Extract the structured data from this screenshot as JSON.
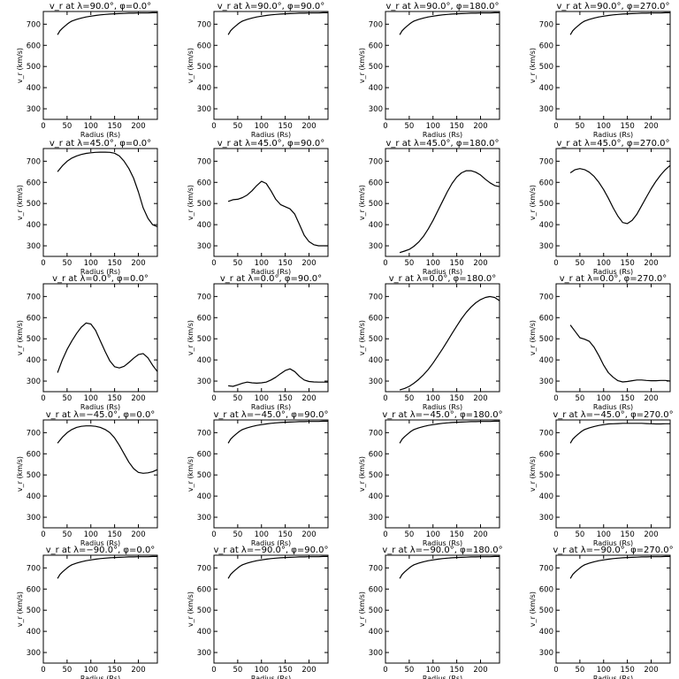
{
  "chart_data": [
    {
      "type": "line",
      "title": "v_r at λ=90.0°, φ=0.0°",
      "xlabel": "Radius (Rs)",
      "ylabel": "v_r (km/s)",
      "xlim": [
        0,
        240
      ],
      "ylim": [
        250,
        760
      ],
      "x": [
        30,
        35,
        40,
        45,
        50,
        55,
        60,
        70,
        80,
        90,
        100,
        110,
        120,
        130,
        140,
        150,
        160,
        170,
        180,
        190,
        200,
        210,
        220,
        230,
        240
      ],
      "y": [
        650,
        669,
        680,
        690,
        700,
        708,
        715,
        723,
        729,
        734,
        738,
        741,
        744,
        746,
        748,
        749,
        750,
        751,
        752,
        752,
        753,
        753,
        753,
        754,
        754
      ]
    },
    {
      "type": "line",
      "title": "v_r at λ=90.0°, φ=90.0°",
      "xlabel": "Radius (Rs)",
      "ylabel": "v_r (km/s)",
      "xlim": [
        0,
        240
      ],
      "ylim": [
        250,
        760
      ],
      "x": [
        30,
        35,
        40,
        45,
        50,
        55,
        60,
        70,
        80,
        90,
        100,
        110,
        120,
        130,
        140,
        150,
        160,
        170,
        180,
        190,
        200,
        210,
        220,
        230,
        240
      ],
      "y": [
        650,
        669,
        680,
        690,
        700,
        708,
        715,
        723,
        729,
        734,
        738,
        741,
        744,
        746,
        748,
        749,
        750,
        751,
        752,
        752,
        753,
        753,
        753,
        754,
        754
      ]
    },
    {
      "type": "line",
      "title": "v_r at λ=90.0°, φ=180.0°",
      "xlabel": "Radius (Rs)",
      "ylabel": "v_r (km/s)",
      "xlim": [
        0,
        240
      ],
      "ylim": [
        250,
        760
      ],
      "x": [
        30,
        35,
        40,
        45,
        50,
        55,
        60,
        70,
        80,
        90,
        100,
        110,
        120,
        130,
        140,
        150,
        160,
        170,
        180,
        190,
        200,
        210,
        220,
        230,
        240
      ],
      "y": [
        650,
        669,
        680,
        690,
        700,
        708,
        715,
        723,
        729,
        734,
        738,
        741,
        744,
        746,
        748,
        749,
        750,
        751,
        752,
        752,
        753,
        753,
        753,
        754,
        754
      ]
    },
    {
      "type": "line",
      "title": "v_r at λ=90.0°, φ=270.0°",
      "xlabel": "Radius (Rs)",
      "ylabel": "v_r (km/s)",
      "xlim": [
        0,
        240
      ],
      "ylim": [
        250,
        760
      ],
      "x": [
        30,
        35,
        40,
        45,
        50,
        55,
        60,
        70,
        80,
        90,
        100,
        110,
        120,
        130,
        140,
        150,
        160,
        170,
        180,
        190,
        200,
        210,
        220,
        230,
        240
      ],
      "y": [
        650,
        669,
        680,
        690,
        700,
        708,
        715,
        723,
        729,
        734,
        738,
        741,
        744,
        746,
        748,
        749,
        750,
        751,
        752,
        752,
        753,
        753,
        753,
        754,
        754
      ]
    },
    {
      "type": "line",
      "title": "v_r at λ=45.0°, φ=0.0°",
      "xlabel": "Radius (Rs)",
      "ylabel": "v_r (km/s)",
      "xlim": [
        0,
        240
      ],
      "ylim": [
        250,
        760
      ],
      "x": [
        30,
        40,
        50,
        60,
        70,
        80,
        90,
        100,
        110,
        120,
        130,
        140,
        150,
        160,
        170,
        180,
        190,
        200,
        210,
        220,
        230,
        240
      ],
      "y": [
        650,
        678,
        700,
        715,
        725,
        732,
        737,
        740,
        742,
        743,
        743,
        742,
        738,
        725,
        700,
        665,
        620,
        555,
        480,
        430,
        400,
        390
      ]
    },
    {
      "type": "line",
      "title": "v_r at λ=45.0°, φ=90.0°",
      "xlabel": "Radius (Rs)",
      "ylabel": "v_r (km/s)",
      "xlim": [
        0,
        240
      ],
      "ylim": [
        250,
        760
      ],
      "x": [
        30,
        40,
        50,
        60,
        70,
        80,
        90,
        100,
        110,
        120,
        130,
        140,
        150,
        160,
        170,
        180,
        190,
        200,
        210,
        220,
        230,
        240
      ],
      "y": [
        510,
        518,
        520,
        528,
        540,
        560,
        585,
        605,
        595,
        560,
        520,
        495,
        485,
        475,
        450,
        400,
        350,
        320,
        305,
        300,
        300,
        300
      ]
    },
    {
      "type": "line",
      "title": "v_r at λ=45.0°, φ=180.0°",
      "xlabel": "Radius (Rs)",
      "ylabel": "v_r (km/s)",
      "xlim": [
        0,
        240
      ],
      "ylim": [
        250,
        760
      ],
      "x": [
        30,
        40,
        50,
        60,
        70,
        80,
        90,
        100,
        110,
        120,
        130,
        140,
        150,
        160,
        170,
        180,
        190,
        200,
        210,
        220,
        230,
        240
      ],
      "y": [
        268,
        275,
        283,
        298,
        318,
        345,
        380,
        420,
        465,
        510,
        555,
        595,
        625,
        645,
        655,
        655,
        648,
        635,
        615,
        598,
        585,
        580
      ]
    },
    {
      "type": "line",
      "title": "v_r at λ=45.0°, φ=270.0°",
      "xlabel": "Radius (Rs)",
      "ylabel": "v_r (km/s)",
      "xlim": [
        0,
        240
      ],
      "ylim": [
        250,
        760
      ],
      "x": [
        30,
        40,
        50,
        60,
        70,
        80,
        90,
        100,
        110,
        120,
        130,
        140,
        150,
        160,
        170,
        180,
        190,
        200,
        210,
        220,
        230,
        240
      ],
      "y": [
        645,
        660,
        665,
        660,
        648,
        628,
        600,
        565,
        525,
        480,
        440,
        410,
        405,
        420,
        450,
        490,
        530,
        570,
        605,
        635,
        660,
        680
      ]
    },
    {
      "type": "line",
      "title": "v_r at λ=0.0°, φ=0.0°",
      "xlabel": "Radius (Rs)",
      "ylabel": "v_r (km/s)",
      "xlim": [
        0,
        240
      ],
      "ylim": [
        250,
        760
      ],
      "x": [
        30,
        40,
        50,
        60,
        70,
        80,
        90,
        100,
        110,
        120,
        130,
        140,
        150,
        160,
        170,
        180,
        190,
        200,
        210,
        220,
        230,
        240
      ],
      "y": [
        340,
        400,
        450,
        490,
        525,
        555,
        575,
        570,
        540,
        490,
        440,
        395,
        368,
        362,
        370,
        388,
        408,
        425,
        430,
        410,
        375,
        345
      ]
    },
    {
      "type": "line",
      "title": "v_r at λ=0.0°, φ=90.0°",
      "xlabel": "Radius (Rs)",
      "ylabel": "v_r (km/s)",
      "xlim": [
        0,
        240
      ],
      "ylim": [
        250,
        760
      ],
      "x": [
        30,
        40,
        50,
        60,
        70,
        80,
        90,
        100,
        110,
        120,
        130,
        140,
        150,
        160,
        170,
        180,
        190,
        200,
        210,
        220,
        230,
        240
      ],
      "y": [
        278,
        275,
        282,
        290,
        295,
        292,
        290,
        292,
        295,
        305,
        318,
        335,
        350,
        358,
        345,
        322,
        305,
        298,
        296,
        295,
        295,
        295
      ]
    },
    {
      "type": "line",
      "title": "v_r at λ=0.0°, φ=180.0°",
      "xlabel": "Radius (Rs)",
      "ylabel": "v_r (km/s)",
      "xlim": [
        0,
        240
      ],
      "ylim": [
        250,
        760
      ],
      "x": [
        30,
        40,
        50,
        60,
        70,
        80,
        90,
        100,
        110,
        120,
        130,
        140,
        150,
        160,
        170,
        180,
        190,
        200,
        210,
        220,
        230,
        240
      ],
      "y": [
        258,
        265,
        275,
        290,
        308,
        330,
        355,
        385,
        418,
        452,
        488,
        525,
        560,
        595,
        625,
        650,
        670,
        685,
        695,
        700,
        695,
        680
      ]
    },
    {
      "type": "line",
      "title": "v_r at λ=0.0°, φ=270.0°",
      "xlabel": "Radius (Rs)",
      "ylabel": "v_r (km/s)",
      "xlim": [
        0,
        240
      ],
      "ylim": [
        250,
        760
      ],
      "x": [
        30,
        40,
        50,
        60,
        70,
        80,
        90,
        100,
        110,
        120,
        130,
        140,
        150,
        160,
        170,
        180,
        190,
        200,
        210,
        220,
        230,
        240
      ],
      "y": [
        565,
        535,
        505,
        498,
        488,
        460,
        420,
        375,
        340,
        318,
        302,
        296,
        298,
        302,
        305,
        305,
        303,
        302,
        302,
        303,
        303,
        300
      ]
    },
    {
      "type": "line",
      "title": "v_r at λ=−45.0°, φ=0.0°",
      "xlabel": "Radius (Rs)",
      "ylabel": "v_r (km/s)",
      "xlim": [
        0,
        240
      ],
      "ylim": [
        250,
        760
      ],
      "x": [
        30,
        40,
        50,
        60,
        70,
        80,
        90,
        100,
        110,
        120,
        130,
        140,
        150,
        160,
        170,
        180,
        190,
        200,
        210,
        220,
        230,
        240
      ],
      "y": [
        650,
        678,
        700,
        715,
        725,
        730,
        732,
        732,
        730,
        725,
        715,
        700,
        675,
        640,
        600,
        560,
        530,
        512,
        508,
        510,
        515,
        525
      ]
    },
    {
      "type": "line",
      "title": "v_r at λ=−45.0°, φ=90.0°",
      "xlabel": "Radius (Rs)",
      "ylabel": "v_r (km/s)",
      "xlim": [
        0,
        240
      ],
      "ylim": [
        250,
        760
      ],
      "x": [
        30,
        35,
        40,
        45,
        50,
        55,
        60,
        70,
        80,
        90,
        100,
        110,
        120,
        130,
        140,
        150,
        160,
        170,
        180,
        190,
        200,
        210,
        220,
        230,
        240
      ],
      "y": [
        650,
        669,
        680,
        690,
        700,
        708,
        715,
        723,
        729,
        734,
        738,
        741,
        744,
        746,
        748,
        749,
        750,
        751,
        752,
        752,
        753,
        753,
        753,
        754,
        754
      ]
    },
    {
      "type": "line",
      "title": "v_r at λ=−45.0°, φ=180.0°",
      "xlabel": "Radius (Rs)",
      "ylabel": "v_r (km/s)",
      "xlim": [
        0,
        240
      ],
      "ylim": [
        250,
        760
      ],
      "x": [
        30,
        35,
        40,
        45,
        50,
        55,
        60,
        70,
        80,
        90,
        100,
        110,
        120,
        130,
        140,
        150,
        160,
        170,
        180,
        190,
        200,
        210,
        220,
        230,
        240
      ],
      "y": [
        650,
        669,
        680,
        690,
        700,
        708,
        715,
        723,
        729,
        734,
        738,
        741,
        744,
        746,
        748,
        749,
        750,
        751,
        752,
        752,
        753,
        753,
        753,
        754,
        754
      ]
    },
    {
      "type": "line",
      "title": "v_r at λ=−45.0°, φ=270.0°",
      "xlabel": "Radius (Rs)",
      "ylabel": "v_r (km/s)",
      "xlim": [
        0,
        240
      ],
      "ylim": [
        250,
        760
      ],
      "x": [
        30,
        35,
        40,
        45,
        50,
        55,
        60,
        70,
        80,
        90,
        100,
        110,
        120,
        130,
        140,
        150,
        160,
        170,
        180,
        190,
        200,
        210,
        220,
        230,
        240
      ],
      "y": [
        650,
        669,
        680,
        690,
        700,
        708,
        715,
        723,
        729,
        734,
        738,
        741,
        742,
        743,
        744,
        744,
        744,
        744,
        744,
        743,
        742,
        741,
        741,
        742,
        742
      ]
    },
    {
      "type": "line",
      "title": "v_r at λ=−90.0°, φ=0.0°",
      "xlabel": "Radius (Rs)",
      "ylabel": "v_r (km/s)",
      "xlim": [
        0,
        240
      ],
      "ylim": [
        250,
        760
      ],
      "x": [
        30,
        35,
        40,
        45,
        50,
        55,
        60,
        70,
        80,
        90,
        100,
        110,
        120,
        130,
        140,
        150,
        160,
        170,
        180,
        190,
        200,
        210,
        220,
        230,
        240
      ],
      "y": [
        650,
        669,
        680,
        690,
        700,
        708,
        715,
        723,
        729,
        734,
        738,
        741,
        744,
        746,
        748,
        749,
        750,
        751,
        752,
        752,
        753,
        753,
        753,
        754,
        754
      ]
    },
    {
      "type": "line",
      "title": "v_r at λ=−90.0°, φ=90.0°",
      "xlabel": "Radius (Rs)",
      "ylabel": "v_r (km/s)",
      "xlim": [
        0,
        240
      ],
      "ylim": [
        250,
        760
      ],
      "x": [
        30,
        35,
        40,
        45,
        50,
        55,
        60,
        70,
        80,
        90,
        100,
        110,
        120,
        130,
        140,
        150,
        160,
        170,
        180,
        190,
        200,
        210,
        220,
        230,
        240
      ],
      "y": [
        650,
        669,
        680,
        690,
        700,
        708,
        715,
        723,
        729,
        734,
        738,
        741,
        744,
        746,
        748,
        749,
        750,
        751,
        752,
        752,
        753,
        753,
        753,
        754,
        754
      ]
    },
    {
      "type": "line",
      "title": "v_r at λ=−90.0°, φ=180.0°",
      "xlabel": "Radius (Rs)",
      "ylabel": "v_r (km/s)",
      "xlim": [
        0,
        240
      ],
      "ylim": [
        250,
        760
      ],
      "x": [
        30,
        35,
        40,
        45,
        50,
        55,
        60,
        70,
        80,
        90,
        100,
        110,
        120,
        130,
        140,
        150,
        160,
        170,
        180,
        190,
        200,
        210,
        220,
        230,
        240
      ],
      "y": [
        650,
        669,
        680,
        690,
        700,
        708,
        715,
        723,
        729,
        734,
        738,
        741,
        744,
        746,
        748,
        749,
        750,
        751,
        752,
        752,
        753,
        753,
        753,
        754,
        754
      ]
    },
    {
      "type": "line",
      "title": "v_r at λ=−90.0°, φ=270.0°",
      "xlabel": "Radius (Rs)",
      "ylabel": "v_r (km/s)",
      "xlim": [
        0,
        240
      ],
      "ylim": [
        250,
        760
      ],
      "x": [
        30,
        35,
        40,
        45,
        50,
        55,
        60,
        70,
        80,
        90,
        100,
        110,
        120,
        130,
        140,
        150,
        160,
        170,
        180,
        190,
        200,
        210,
        220,
        230,
        240
      ],
      "y": [
        650,
        669,
        680,
        690,
        700,
        708,
        715,
        723,
        729,
        734,
        738,
        741,
        744,
        746,
        748,
        749,
        750,
        751,
        752,
        752,
        753,
        753,
        753,
        754,
        754
      ]
    }
  ],
  "axes": {
    "xticks": [
      0,
      50,
      100,
      150,
      200
    ],
    "yticks": [
      300,
      400,
      500,
      600,
      700
    ]
  }
}
